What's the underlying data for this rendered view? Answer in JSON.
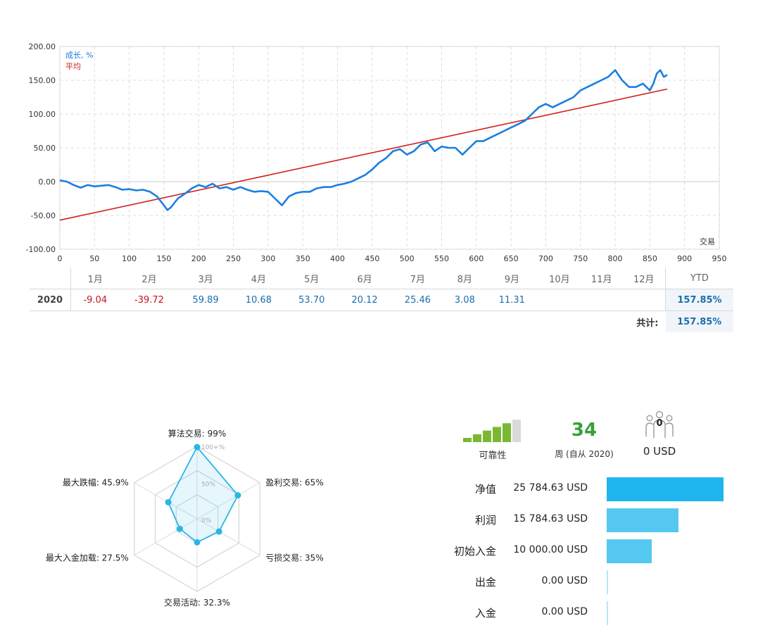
{
  "chart_data": [
    {
      "type": "line",
      "title": "",
      "xlabel": "交易",
      "ylabel": "",
      "xlim": [
        0,
        950
      ],
      "ylim": [
        -100,
        200
      ],
      "x_ticks": [
        0,
        50,
        100,
        150,
        200,
        250,
        300,
        350,
        400,
        450,
        500,
        550,
        600,
        650,
        700,
        750,
        800,
        850,
        900,
        950
      ],
      "y_ticks": [
        -100,
        -50,
        0,
        50,
        100,
        150,
        200
      ],
      "y_tick_labels": [
        "-100.00",
        "-50.00",
        "0.00",
        "50.00",
        "100.00",
        "150.00",
        "200.00"
      ],
      "grid": true,
      "legend_position": "top-left",
      "series": [
        {
          "name": "成长, %",
          "color": "#1b7fe0",
          "x": [
            0,
            10,
            20,
            30,
            40,
            50,
            60,
            70,
            80,
            90,
            100,
            110,
            120,
            130,
            140,
            150,
            155,
            160,
            170,
            180,
            190,
            200,
            210,
            220,
            230,
            240,
            250,
            260,
            270,
            280,
            290,
            300,
            310,
            320,
            330,
            340,
            350,
            360,
            370,
            380,
            390,
            400,
            410,
            420,
            430,
            440,
            450,
            460,
            470,
            480,
            490,
            500,
            510,
            520,
            530,
            540,
            550,
            560,
            570,
            580,
            590,
            600,
            610,
            620,
            630,
            640,
            650,
            660,
            670,
            680,
            690,
            700,
            710,
            720,
            730,
            740,
            750,
            760,
            770,
            780,
            790,
            800,
            810,
            820,
            830,
            840,
            850,
            855,
            860,
            865,
            870,
            875
          ],
          "y": [
            2,
            0,
            -5,
            -9,
            -5,
            -7,
            -6,
            -5,
            -8,
            -12,
            -11,
            -13,
            -12,
            -15,
            -22,
            -35,
            -42,
            -38,
            -25,
            -18,
            -10,
            -5,
            -8,
            -3,
            -10,
            -8,
            -12,
            -8,
            -12,
            -15,
            -14,
            -15,
            -25,
            -35,
            -22,
            -17,
            -15,
            -15,
            -10,
            -8,
            -8,
            -5,
            -3,
            0,
            5,
            10,
            18,
            28,
            35,
            45,
            48,
            40,
            45,
            55,
            58,
            45,
            52,
            50,
            50,
            40,
            50,
            60,
            60,
            65,
            70,
            75,
            80,
            85,
            90,
            100,
            110,
            115,
            110,
            115,
            120,
            125,
            135,
            140,
            145,
            150,
            155,
            165,
            150,
            140,
            140,
            145,
            135,
            145,
            160,
            165,
            155,
            158
          ]
        },
        {
          "name": "平均",
          "color": "#d11f1f",
          "x": [
            0,
            875
          ],
          "y": [
            -57,
            137
          ]
        }
      ]
    },
    {
      "type": "table",
      "year": "2020",
      "months": [
        "1月",
        "2月",
        "3月",
        "4月",
        "5月",
        "6月",
        "7月",
        "8月",
        "9月",
        "10月",
        "11月",
        "12月"
      ],
      "values": [
        "-9.04",
        "-39.72",
        "59.89",
        "10.68",
        "53.70",
        "20.12",
        "25.46",
        "3.08",
        "11.31",
        "",
        "",
        ""
      ],
      "ytd_label": "YTD",
      "ytd_value": "157.85%",
      "total_label": "共计:",
      "total_value": "157.85%"
    },
    {
      "type": "radar",
      "scale_labels": [
        "100+%",
        "50%",
        "0%"
      ],
      "color": "#29b6e6",
      "axes": [
        {
          "label": "算法交易: 99%",
          "value": 99
        },
        {
          "label": "盈利交易: 65%",
          "value": 65
        },
        {
          "label": "亏损交易: 35%",
          "value": 35
        },
        {
          "label": "交易活动: 32.3%",
          "value": 32.3
        },
        {
          "label": "最大入金加载: 27.5%",
          "value": 27.5
        },
        {
          "label": "最大跌幅: 45.9%",
          "value": 45.9
        }
      ]
    },
    {
      "type": "bar",
      "orientation": "horizontal",
      "categories": [
        "净值",
        "利润",
        "初始入金",
        "出金",
        "入金"
      ],
      "values": [
        25784.63,
        15784.63,
        10000.0,
        0.0,
        0.0
      ],
      "value_labels": [
        "25 784.63 USD",
        "15 784.63 USD",
        "10 000.00 USD",
        "0.00 USD",
        "0.00 USD"
      ],
      "colors": [
        "#1fb5ee",
        "#55c8f1",
        "#55c8f1",
        "#b9e6f7",
        "#b9e6f7"
      ],
      "max": 25784.63
    }
  ],
  "summary": {
    "reliability_label": "可靠性",
    "reliability_level": 5,
    "reliability_max": 6,
    "weeks_value": "34",
    "weeks_label": "周 (自从 2020)",
    "subscribers_count": "0",
    "subscribers_amount": "0 USD",
    "subscribers_icon": "people-group-icon",
    "accent_green": "#7ab833",
    "weeks_color": "#3a9f3a"
  }
}
